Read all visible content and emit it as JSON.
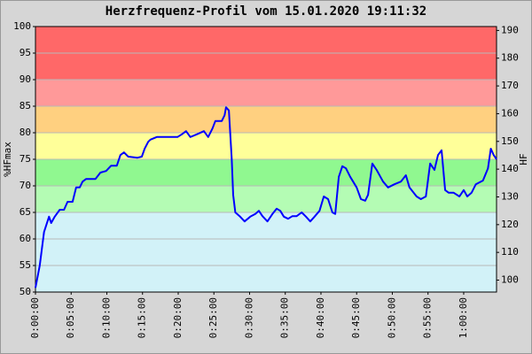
{
  "chart_data": {
    "type": "line",
    "title": "Herzfrequenz-Profil vom 15.01.2020 19:11:32",
    "y_label": "%HFmax",
    "y2_label": "HF",
    "xlim": [
      0,
      64.6
    ],
    "xticks": [
      {
        "value": 0,
        "label": "0:00:00"
      },
      {
        "value": 5,
        "label": "0:05:00"
      },
      {
        "value": 10,
        "label": "0:10:00"
      },
      {
        "value": 15,
        "label": "0:15:00"
      },
      {
        "value": 20,
        "label": "0:20:00"
      },
      {
        "value": 25,
        "label": "0:25:00"
      },
      {
        "value": 30,
        "label": "0:30:00"
      },
      {
        "value": 35,
        "label": "0:35:00"
      },
      {
        "value": 40,
        "label": "0:40:00"
      },
      {
        "value": 45,
        "label": "0:45:00"
      },
      {
        "value": 50,
        "label": "0:50:00"
      },
      {
        "value": 55,
        "label": "0:55:00"
      },
      {
        "value": 60,
        "label": "1:00:00"
      }
    ],
    "ylim": [
      50,
      100
    ],
    "yticks": [
      50,
      55,
      60,
      65,
      70,
      75,
      80,
      85,
      90,
      95,
      100
    ],
    "y2lim": [
      95.7,
      191.4
    ],
    "y2ticks": [
      100,
      110,
      120,
      130,
      140,
      150,
      160,
      170,
      180,
      190
    ],
    "grid": true,
    "zones": [
      {
        "from": 50,
        "to": 65,
        "color": "#d2f2f8"
      },
      {
        "from": 65,
        "to": 70,
        "color": "#b4fcb4"
      },
      {
        "from": 70,
        "to": 75,
        "color": "#90f890"
      },
      {
        "from": 75,
        "to": 80,
        "color": "#ffff99"
      },
      {
        "from": 80,
        "to": 85,
        "color": "#ffd080"
      },
      {
        "from": 85,
        "to": 90,
        "color": "#ff9999"
      },
      {
        "from": 90,
        "to": 100,
        "color": "#ff6868"
      }
    ],
    "series": [
      {
        "color": "#0000ff",
        "x": [
          0.0,
          0.6,
          1.2,
          1.9,
          2.2,
          2.7,
          3.4,
          4.0,
          4.5,
          5.2,
          5.7,
          6.2,
          6.6,
          7.1,
          8.4,
          9.1,
          9.9,
          10.6,
          11.4,
          11.9,
          12.4,
          13.0,
          14.3,
          14.9,
          15.3,
          15.8,
          16.1,
          17.0,
          19.9,
          20.5,
          21.1,
          21.7,
          22.6,
          23.6,
          24.2,
          24.8,
          25.2,
          26.1,
          26.5,
          26.7,
          27.1,
          27.5,
          27.7,
          28.0,
          28.6,
          29.3,
          30.1,
          30.8,
          31.3,
          31.8,
          32.5,
          33.2,
          33.8,
          34.3,
          34.8,
          35.4,
          36.0,
          36.6,
          37.3,
          37.9,
          38.5,
          39.1,
          39.8,
          40.4,
          41.0,
          41.6,
          42.0,
          42.5,
          43.0,
          43.5,
          44.1,
          45.0,
          45.6,
          46.2,
          46.6,
          47.2,
          47.8,
          48.7,
          49.4,
          50.3,
          51.2,
          51.9,
          52.4,
          53.4,
          54.0,
          54.7,
          55.3,
          55.9,
          56.4,
          56.9,
          57.4,
          57.9,
          58.6,
          59.4,
          60.0,
          60.5,
          61.1,
          61.7,
          62.7,
          63.4,
          63.8,
          64.2,
          64.6
        ],
        "values": [
          50.8,
          55.0,
          61.3,
          64.2,
          63.0,
          64.2,
          65.5,
          65.5,
          67.0,
          67.0,
          69.7,
          69.7,
          70.8,
          71.3,
          71.3,
          72.5,
          72.8,
          73.8,
          73.8,
          75.8,
          76.3,
          75.5,
          75.3,
          75.5,
          77.0,
          78.3,
          78.7,
          79.2,
          79.2,
          79.7,
          80.3,
          79.2,
          79.7,
          80.3,
          79.2,
          80.8,
          82.2,
          82.2,
          83.3,
          84.8,
          84.2,
          75.0,
          68.3,
          65.0,
          64.3,
          63.3,
          64.2,
          64.7,
          65.3,
          64.3,
          63.3,
          64.7,
          65.7,
          65.3,
          64.2,
          63.8,
          64.3,
          64.3,
          65.0,
          64.2,
          63.3,
          64.2,
          65.3,
          68.0,
          67.5,
          65.0,
          64.7,
          71.7,
          73.7,
          73.3,
          71.7,
          69.7,
          67.5,
          67.2,
          68.3,
          74.2,
          73.0,
          70.8,
          69.7,
          70.3,
          70.8,
          72.0,
          69.7,
          68.0,
          67.5,
          68.0,
          74.2,
          73.0,
          75.8,
          76.7,
          69.2,
          68.7,
          68.7,
          68.0,
          69.2,
          68.0,
          68.7,
          70.3,
          71.0,
          73.3,
          77.0,
          75.8,
          75.0
        ]
      }
    ]
  }
}
